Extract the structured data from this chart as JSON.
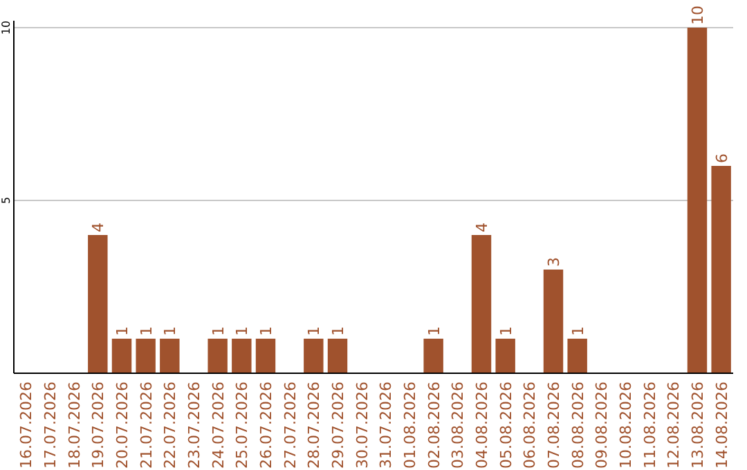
{
  "chart_data": {
    "type": "bar",
    "categories": [
      "16.07.2026",
      "17.07.2026",
      "18.07.2026",
      "19.07.2026",
      "20.07.2026",
      "21.07.2026",
      "22.07.2026",
      "23.07.2026",
      "24.07.2026",
      "25.07.2026",
      "26.07.2026",
      "27.07.2026",
      "28.07.2026",
      "29.07.2026",
      "30.07.2026",
      "31.07.2026",
      "01.08.2026",
      "02.08.2026",
      "03.08.2026",
      "04.08.2026",
      "05.08.2026",
      "06.08.2026",
      "07.08.2026",
      "08.08.2026",
      "09.08.2026",
      "10.08.2026",
      "11.08.2026",
      "12.08.2026",
      "13.08.2026",
      "14.08.2026"
    ],
    "values": [
      0,
      0,
      0,
      4,
      1,
      1,
      1,
      0,
      1,
      1,
      1,
      0,
      1,
      1,
      0,
      0,
      0,
      1,
      0,
      4,
      1,
      0,
      3,
      1,
      0,
      0,
      0,
      0,
      10,
      6
    ],
    "value_labels": [
      null,
      null,
      null,
      "4",
      "1",
      "1",
      "1",
      null,
      "1",
      "1",
      "1",
      null,
      "1",
      "1",
      null,
      null,
      null,
      "1",
      null,
      "4",
      "1",
      null,
      "3",
      "1",
      null,
      null,
      null,
      null,
      "10",
      "6"
    ],
    "color": "#a0522d",
    "ylim": [
      0,
      10
    ],
    "yticks": [
      5,
      10
    ],
    "grid": "y"
  }
}
